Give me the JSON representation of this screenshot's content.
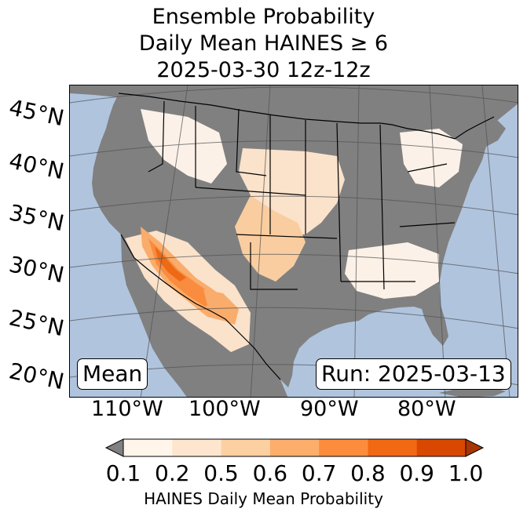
{
  "title": {
    "line1": "Ensemble Probability",
    "line2": "Daily Mean HAINES ≥ 6",
    "line3": "2025-03-30 12z-12z"
  },
  "map": {
    "lat_labels": [
      "45°N",
      "40°N",
      "35°N",
      "30°N",
      "25°N",
      "20°N"
    ],
    "lon_labels": [
      "110°W",
      "100°W",
      "90°W",
      "80°W"
    ],
    "statistic_label": "Mean",
    "run_label": "Run: 2025-03-13",
    "colors": {
      "ocean": "#b0c4de",
      "land_below_threshold": "#808080",
      "highest_probability_area": "southwestern US / northern Mexico"
    }
  },
  "colorbar": {
    "ticks": [
      "0.1",
      "0.2",
      "0.5",
      "0.6",
      "0.7",
      "0.8",
      "0.9",
      "1.0"
    ],
    "colors": [
      "#fff5eb",
      "#fee6ce",
      "#fdd0a2",
      "#fdae6b",
      "#fd8d3c",
      "#f16913",
      "#d94801",
      "#a63603"
    ],
    "under_color": "#808080",
    "label": "HAINES Daily Mean Probability"
  }
}
